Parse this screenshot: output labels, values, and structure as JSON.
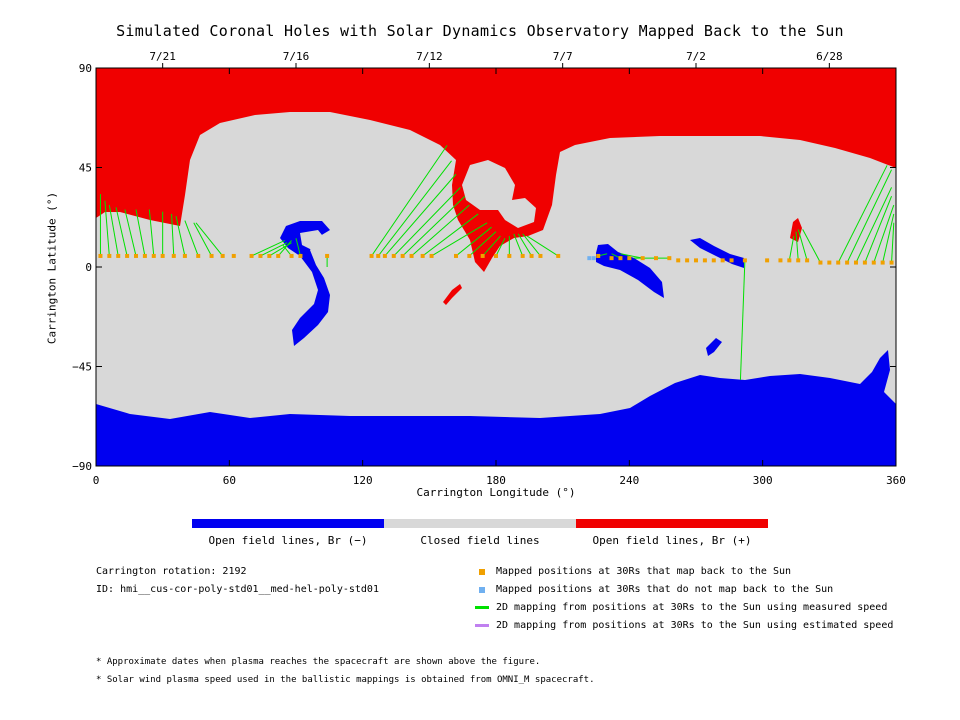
{
  "title": "Simulated Coronal Holes with Solar Dynamics Observatory Mapped Back to the Sun",
  "colors": {
    "open_negative": "#0000f0",
    "closed": "#d8d8d8",
    "open_positive": "#f00000",
    "mapped_yes": "#f0a000",
    "mapped_no": "#70b0f0",
    "measured_line": "#00e000",
    "estimated_line": "#c080f0"
  },
  "chart_data": {
    "type": "scatter",
    "xlabel": "Carrington Longitude (°)",
    "ylabel": "Carrington Latitude (°)",
    "xlim": [
      0,
      360
    ],
    "ylim": [
      -90,
      90
    ],
    "x_ticks": [
      0,
      60,
      120,
      180,
      240,
      300,
      360
    ],
    "y_ticks": [
      90,
      45,
      0,
      -45,
      -90
    ],
    "y_tick_labels": [
      "90",
      "45",
      "0",
      "−45",
      "−90"
    ],
    "top_axis_dates": [
      {
        "label": "7/21",
        "lon": 30
      },
      {
        "label": "7/16",
        "lon": 90
      },
      {
        "label": "7/12",
        "lon": 150
      },
      {
        "label": "7/7",
        "lon": 210
      },
      {
        "label": "7/2",
        "lon": 270
      },
      {
        "label": "6/28",
        "lon": 330
      }
    ],
    "mapped_positions": [
      {
        "lon": 2,
        "lat": 5
      },
      {
        "lon": 6,
        "lat": 5
      },
      {
        "lon": 10,
        "lat": 5
      },
      {
        "lon": 14,
        "lat": 5
      },
      {
        "lon": 18,
        "lat": 5
      },
      {
        "lon": 22,
        "lat": 5
      },
      {
        "lon": 26,
        "lat": 5
      },
      {
        "lon": 30,
        "lat": 5
      },
      {
        "lon": 35,
        "lat": 5
      },
      {
        "lon": 40,
        "lat": 5
      },
      {
        "lon": 46,
        "lat": 5
      },
      {
        "lon": 52,
        "lat": 5
      },
      {
        "lon": 57,
        "lat": 5
      },
      {
        "lon": 62,
        "lat": 5
      },
      {
        "lon": 70,
        "lat": 5
      },
      {
        "lon": 74,
        "lat": 5
      },
      {
        "lon": 78,
        "lat": 5
      },
      {
        "lon": 82,
        "lat": 5
      },
      {
        "lon": 88,
        "lat": 5
      },
      {
        "lon": 92,
        "lat": 5
      },
      {
        "lon": 104,
        "lat": 5
      },
      {
        "lon": 124,
        "lat": 5
      },
      {
        "lon": 127,
        "lat": 5
      },
      {
        "lon": 130,
        "lat": 5
      },
      {
        "lon": 134,
        "lat": 5
      },
      {
        "lon": 138,
        "lat": 5
      },
      {
        "lon": 142,
        "lat": 5
      },
      {
        "lon": 147,
        "lat": 5
      },
      {
        "lon": 151,
        "lat": 5
      },
      {
        "lon": 162,
        "lat": 5
      },
      {
        "lon": 168,
        "lat": 5
      },
      {
        "lon": 174,
        "lat": 5
      },
      {
        "lon": 180,
        "lat": 5
      },
      {
        "lon": 186,
        "lat": 5
      },
      {
        "lon": 192,
        "lat": 5
      },
      {
        "lon": 196,
        "lat": 5
      },
      {
        "lon": 200,
        "lat": 5
      },
      {
        "lon": 208,
        "lat": 5
      },
      {
        "lon": 226,
        "lat": 5
      },
      {
        "lon": 232,
        "lat": 4
      },
      {
        "lon": 236,
        "lat": 4
      },
      {
        "lon": 240,
        "lat": 4
      },
      {
        "lon": 246,
        "lat": 4
      },
      {
        "lon": 252,
        "lat": 4
      },
      {
        "lon": 258,
        "lat": 4
      },
      {
        "lon": 262,
        "lat": 3
      },
      {
        "lon": 266,
        "lat": 3
      },
      {
        "lon": 270,
        "lat": 3
      },
      {
        "lon": 274,
        "lat": 3
      },
      {
        "lon": 278,
        "lat": 3
      },
      {
        "lon": 282,
        "lat": 3
      },
      {
        "lon": 286,
        "lat": 3
      },
      {
        "lon": 292,
        "lat": 3
      },
      {
        "lon": 302,
        "lat": 3
      },
      {
        "lon": 308,
        "lat": 3
      },
      {
        "lon": 312,
        "lat": 3
      },
      {
        "lon": 316,
        "lat": 3
      },
      {
        "lon": 320,
        "lat": 3
      },
      {
        "lon": 326,
        "lat": 2
      },
      {
        "lon": 330,
        "lat": 2
      },
      {
        "lon": 334,
        "lat": 2
      },
      {
        "lon": 338,
        "lat": 2
      },
      {
        "lon": 342,
        "lat": 2
      },
      {
        "lon": 346,
        "lat": 2
      },
      {
        "lon": 350,
        "lat": 2
      },
      {
        "lon": 354,
        "lat": 2
      },
      {
        "lon": 358,
        "lat": 2
      }
    ],
    "unmapped_positions": [
      {
        "lon": 222,
        "lat": 4
      },
      {
        "lon": 224,
        "lat": 4
      }
    ],
    "measured_speed_mappings": [
      {
        "from": [
          2,
          5
        ],
        "to": [
          2,
          33
        ]
      },
      {
        "from": [
          6,
          5
        ],
        "to": [
          4,
          30
        ]
      },
      {
        "from": [
          10,
          5
        ],
        "to": [
          6,
          28
        ]
      },
      {
        "from": [
          14,
          5
        ],
        "to": [
          9,
          27
        ]
      },
      {
        "from": [
          18,
          5
        ],
        "to": [
          13,
          26
        ]
      },
      {
        "from": [
          22,
          5
        ],
        "to": [
          18,
          26
        ]
      },
      {
        "from": [
          26,
          5
        ],
        "to": [
          24,
          26
        ]
      },
      {
        "from": [
          30,
          5
        ],
        "to": [
          30,
          25
        ]
      },
      {
        "from": [
          35,
          5
        ],
        "to": [
          34,
          24
        ]
      },
      {
        "from": [
          40,
          5
        ],
        "to": [
          36,
          23
        ]
      },
      {
        "from": [
          46,
          5
        ],
        "to": [
          40,
          21
        ]
      },
      {
        "from": [
          52,
          5
        ],
        "to": [
          44,
          20
        ]
      },
      {
        "from": [
          57,
          5
        ],
        "to": [
          45,
          20
        ]
      },
      {
        "from": [
          70,
          5
        ],
        "to": [
          85,
          12
        ]
      },
      {
        "from": [
          74,
          5
        ],
        "to": [
          86,
          11
        ]
      },
      {
        "from": [
          78,
          5
        ],
        "to": [
          88,
          11
        ]
      },
      {
        "from": [
          82,
          5
        ],
        "to": [
          88,
          12
        ]
      },
      {
        "from": [
          88,
          5
        ],
        "to": [
          84,
          10
        ]
      },
      {
        "from": [
          92,
          5
        ],
        "to": [
          90,
          13
        ]
      },
      {
        "from": [
          104,
          5
        ],
        "to": [
          104,
          0
        ]
      },
      {
        "from": [
          124,
          5
        ],
        "to": [
          158,
          55
        ]
      },
      {
        "from": [
          127,
          5
        ],
        "to": [
          160,
          48
        ]
      },
      {
        "from": [
          130,
          5
        ],
        "to": [
          162,
          42
        ]
      },
      {
        "from": [
          134,
          5
        ],
        "to": [
          164,
          36
        ]
      },
      {
        "from": [
          138,
          5
        ],
        "to": [
          166,
          32
        ]
      },
      {
        "from": [
          142,
          5
        ],
        "to": [
          168,
          28
        ]
      },
      {
        "from": [
          147,
          5
        ],
        "to": [
          172,
          24
        ]
      },
      {
        "from": [
          151,
          5
        ],
        "to": [
          176,
          20
        ]
      },
      {
        "from": [
          162,
          5
        ],
        "to": [
          178,
          18
        ]
      },
      {
        "from": [
          168,
          5
        ],
        "to": [
          180,
          16
        ]
      },
      {
        "from": [
          174,
          5
        ],
        "to": [
          182,
          14
        ]
      },
      {
        "from": [
          180,
          5
        ],
        "to": [
          184,
          13
        ]
      },
      {
        "from": [
          186,
          5
        ],
        "to": [
          186,
          14
        ]
      },
      {
        "from": [
          192,
          5
        ],
        "to": [
          188,
          15
        ]
      },
      {
        "from": [
          196,
          5
        ],
        "to": [
          190,
          15
        ]
      },
      {
        "from": [
          200,
          5
        ],
        "to": [
          192,
          15
        ]
      },
      {
        "from": [
          208,
          5
        ],
        "to": [
          194,
          14
        ]
      },
      {
        "from": [
          226,
          5
        ],
        "to": [
          230,
          6
        ]
      },
      {
        "from": [
          236,
          4
        ],
        "to": [
          232,
          6
        ]
      },
      {
        "from": [
          246,
          4
        ],
        "to": [
          236,
          6
        ]
      },
      {
        "from": [
          258,
          4
        ],
        "to": [
          242,
          4
        ]
      },
      {
        "from": [
          292,
          3
        ],
        "to": [
          290,
          -51
        ]
      },
      {
        "from": [
          312,
          3
        ],
        "to": [
          314,
          14
        ]
      },
      {
        "from": [
          316,
          3
        ],
        "to": [
          315,
          16
        ]
      },
      {
        "from": [
          320,
          3
        ],
        "to": [
          316,
          17
        ]
      },
      {
        "from": [
          326,
          2
        ],
        "to": [
          318,
          17
        ]
      },
      {
        "from": [
          334,
          2
        ],
        "to": [
          356,
          46
        ]
      },
      {
        "from": [
          338,
          2
        ],
        "to": [
          358,
          44
        ]
      },
      {
        "from": [
          342,
          2
        ],
        "to": [
          358,
          36
        ]
      },
      {
        "from": [
          346,
          2
        ],
        "to": [
          358,
          32
        ]
      },
      {
        "from": [
          350,
          2
        ],
        "to": [
          359,
          28
        ]
      },
      {
        "from": [
          354,
          2
        ],
        "to": [
          359,
          24
        ]
      },
      {
        "from": [
          358,
          2
        ],
        "to": [
          359,
          20
        ]
      }
    ]
  },
  "colorbar": {
    "labels": [
      "Open field lines, Br (−)",
      "Closed field lines",
      "Open field lines, Br (+)"
    ]
  },
  "info": {
    "rotation": "Carrington rotation: 2192",
    "id": "ID: hmi__cus-cor-poly-std01__med-hel-poly-std01"
  },
  "legend": {
    "items": [
      "Mapped positions at 30Rs that map back to the Sun",
      "Mapped positions at 30Rs that do not map back to the Sun",
      "2D mapping from positions at 30Rs to the Sun using measured speed",
      "2D mapping from positions at 30Rs to the Sun using estimated speed"
    ]
  },
  "notes": [
    "* Approximate dates when plasma reaches the spacecraft are shown above the figure.",
    "* Solar wind plasma speed used in the ballistic mappings is obtained from OMNI_M spacecraft."
  ]
}
